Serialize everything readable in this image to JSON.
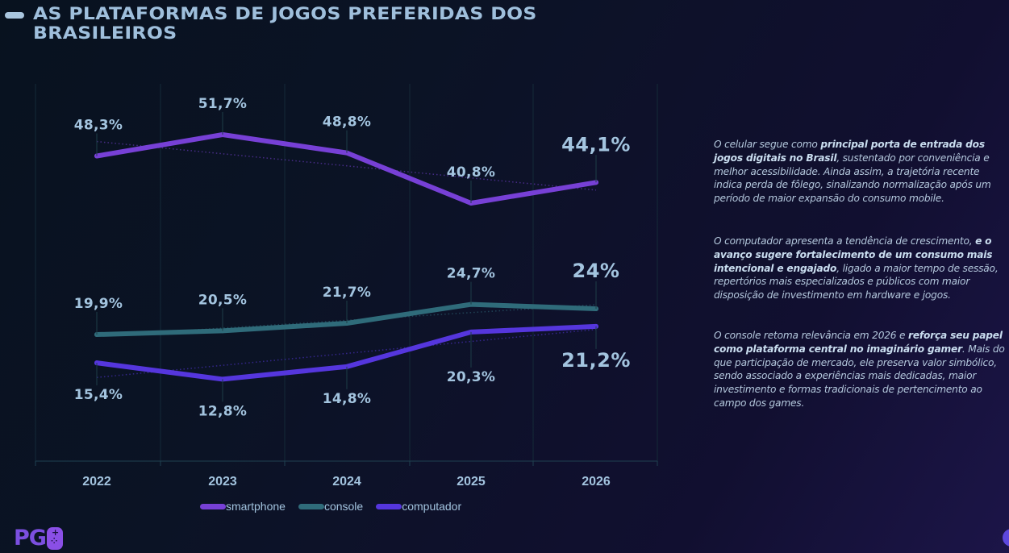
{
  "title": "AS PLATAFORMAS DE JOGOS PREFERIDAS DOS BRASILEIROS",
  "colors": {
    "smartphone": "#7740d6",
    "console": "#2f6b7a",
    "computador": "#5536dd",
    "label": "#a3c4df"
  },
  "chart_data": {
    "type": "line",
    "title": "AS PLATAFORMAS DE JOGOS PREFERIDAS DOS BRASILEIROS",
    "xlabel": "",
    "ylabel": "",
    "categories": [
      "2022",
      "2023",
      "2024",
      "2025",
      "2026"
    ],
    "grid": "vertical",
    "legend_position": "bottom",
    "series": [
      {
        "name": "smartphone",
        "values": [
          48.3,
          51.7,
          48.8,
          40.8,
          44.1
        ],
        "labels": [
          "48,3%",
          "51,7%",
          "48,8%",
          "40,8%",
          "44,1%"
        ],
        "label_side": [
          "above",
          "above",
          "above",
          "above",
          "above"
        ]
      },
      {
        "name": "console",
        "values": [
          19.9,
          20.5,
          21.7,
          24.7,
          24.0
        ],
        "labels": [
          "19,9%",
          "20,5%",
          "21,7%",
          "24,7%",
          "24%"
        ],
        "label_side": [
          "above",
          "above",
          "above",
          "above",
          "above"
        ]
      },
      {
        "name": "computador",
        "values": [
          15.4,
          12.8,
          14.8,
          20.3,
          21.2
        ],
        "labels": [
          "15,4%",
          "12,8%",
          "14,8%",
          "20,3%",
          "21,2%"
        ],
        "label_side": [
          "below",
          "below",
          "below",
          "below",
          "below"
        ]
      }
    ],
    "trendlines": "dotted linear trend per series"
  },
  "legend": [
    "smartphone",
    "console",
    "computador"
  ],
  "descriptions": [
    {
      "parts": [
        {
          "text": "O celular segue como ",
          "bold": false
        },
        {
          "text": "principal porta de entrada dos jogos digitais no Brasil",
          "bold": true
        },
        {
          "text": ", sustentado por conveniência e melhor acessibilidade. Ainda assim, a trajetória recente indica perda de fôlego, sinalizando normalização após um período de maior expansão do consumo mobile.",
          "bold": false
        }
      ]
    },
    {
      "parts": [
        {
          "text": "O computador apresenta a tendência de crescimento, ",
          "bold": false
        },
        {
          "text": "e o avanço sugere fortalecimento de um consumo mais intencional e engajado",
          "bold": true
        },
        {
          "text": ", ligado a maior tempo de sessão, repertórios mais especializados e públicos com maior disposição de investimento em hardware e jogos.",
          "bold": false
        }
      ]
    },
    {
      "parts": [
        {
          "text": "O console retoma relevância em 2026 e ",
          "bold": false
        },
        {
          "text": "reforça seu papel como plataforma central no imaginário gamer",
          "bold": true
        },
        {
          "text": ". Mais do que participação de mercado, ele preserva valor simbólico, sendo associado a experiências mais dedicadas, maior investimento e formas tradicionais de pertencimento ao campo dos games.",
          "bold": false
        }
      ]
    }
  ],
  "logo": {
    "text": "PG"
  }
}
